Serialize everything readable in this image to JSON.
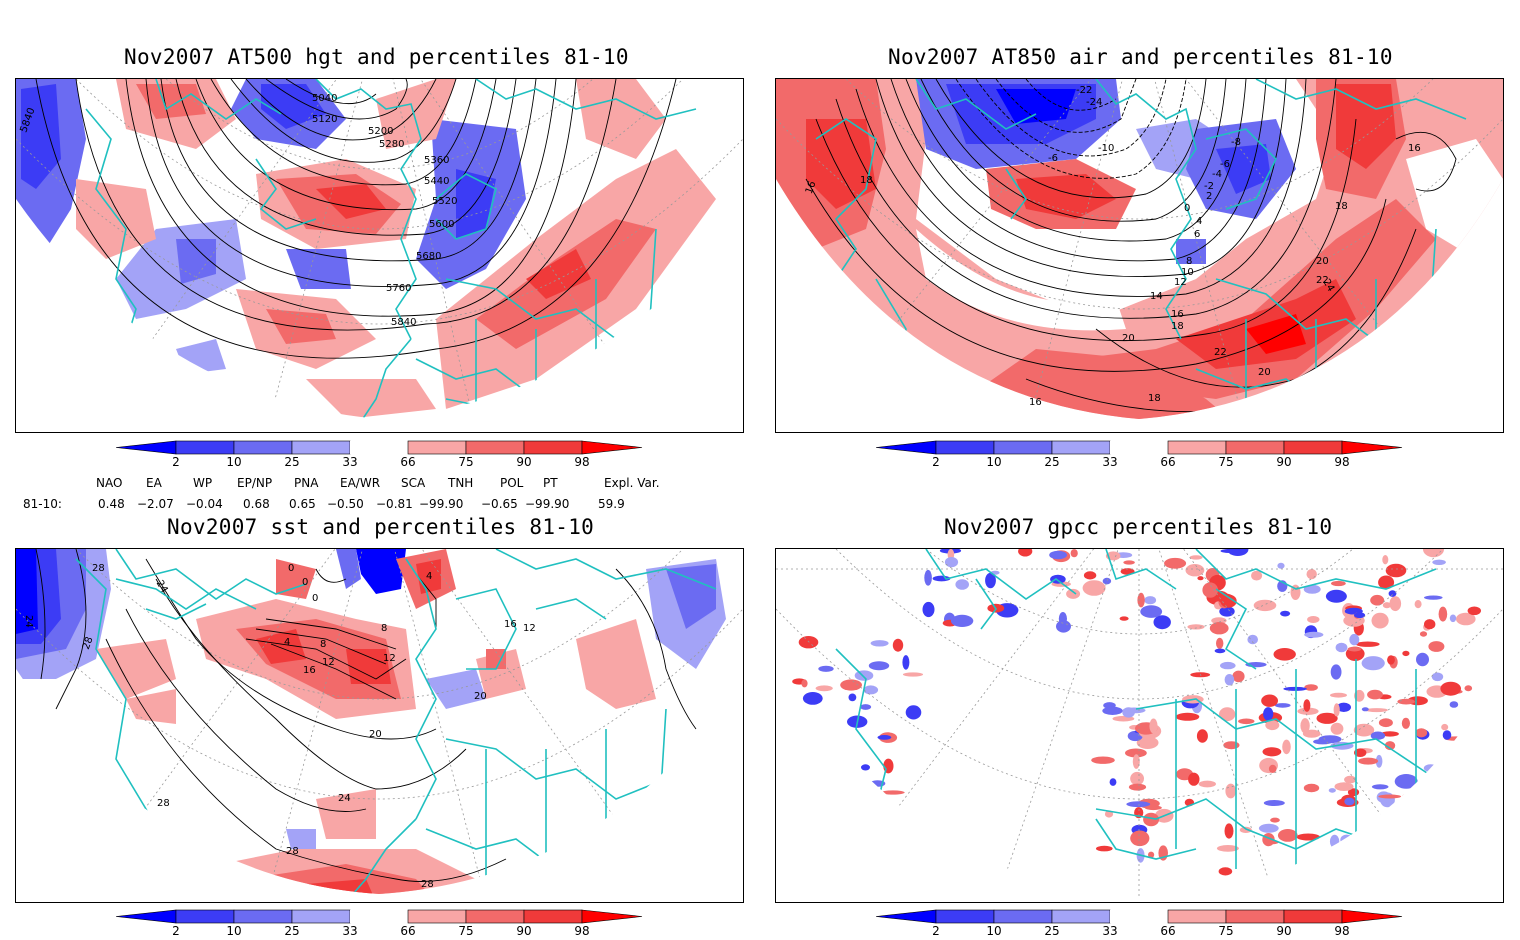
{
  "panels": [
    {
      "id": "hgt500",
      "title": "Nov2007 AT500 hgt and percentiles 81-10",
      "contour_labels": [
        "5040",
        "5120",
        "5200",
        "5280",
        "5360",
        "5440",
        "5520",
        "5600",
        "5680",
        "5760",
        "5840",
        "5840"
      ]
    },
    {
      "id": "air850",
      "title": "Nov2007 AT850 air and percentiles 81-10",
      "contour_labels": [
        "-22",
        "-24",
        "-8",
        "-6",
        "-4",
        "-2",
        "0",
        "2",
        "4",
        "6",
        "8",
        "10",
        "12",
        "14",
        "16",
        "18",
        "20",
        "22",
        "24",
        "16",
        "18",
        "18",
        "20",
        "22",
        "20",
        "18",
        "16",
        "16",
        "-10",
        "-6"
      ]
    },
    {
      "id": "sst",
      "title": "Nov2007 sst and percentiles 81-10",
      "contour_labels": [
        "28",
        "24",
        "24",
        "28",
        "0",
        "0",
        "0",
        "4",
        "4",
        "8",
        "8",
        "12",
        "12",
        "16",
        "20",
        "20",
        "16",
        "12",
        "24",
        "28",
        "28",
        "28"
      ]
    },
    {
      "id": "gpcc",
      "title": "Nov2007 gpcc percentiles 81-10",
      "contour_labels": []
    }
  ],
  "colorbar": {
    "labels": [
      "2",
      "10",
      "25",
      "33",
      "66",
      "75",
      "90",
      "98"
    ],
    "colors": [
      "#0000ff",
      "#3c3cf5",
      "#6b6bf2",
      "#a3a3f7",
      "#ffffff",
      "#f8a6a6",
      "#f26a6a",
      "#f03a3a",
      "#ff0000"
    ]
  },
  "indices": {
    "row_label": "81-10:",
    "names": [
      "NAO",
      "EA",
      "WP",
      "EP/NP",
      "PNA",
      "EA/WR",
      "SCA",
      "TNH",
      "POL",
      "PT",
      "Expl. Var."
    ],
    "values": [
      "0.48",
      "−2.07",
      "−0.04",
      "0.68",
      "0.65",
      "−0.50",
      "−0.81",
      "−99.90",
      "−0.65",
      "−99.90",
      "59.9"
    ]
  },
  "colors": {
    "coast": "#20c0c0",
    "blue_dark": "#3c3cf5",
    "blue_mid": "#6b6bf2",
    "blue_light": "#a3a3f7",
    "red_light": "#f8a6a6",
    "red_mid": "#f26a6a",
    "red_dark": "#f03a3a"
  }
}
